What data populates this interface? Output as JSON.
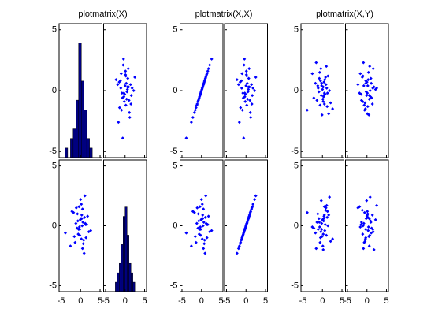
{
  "chart_data": [
    {
      "type": "scatter-matrix",
      "title": "plotmatrix(X)",
      "diagonal": "hist",
      "color": "#0000ff",
      "hist_color": "#000080",
      "xlim": [
        -5.5,
        5.5
      ],
      "ylim": [
        -5.5,
        5.5
      ],
      "xticks": [
        -5,
        0,
        5
      ],
      "yticks": [
        -5,
        0,
        5
      ],
      "hist_ylim": [
        0,
        14
      ],
      "vars": [
        [
          0.3,
          -0.5,
          1.2,
          -1.1,
          0.8,
          0.1,
          -0.2,
          1.6,
          -1.8,
          0.5,
          -0.7,
          2.1,
          0.0,
          -0.3,
          1.0,
          -1.4,
          0.6,
          -3.9,
          0.2,
          -0.9,
          1.4,
          -0.1,
          0.9,
          -2.2,
          0.4,
          -0.6,
          1.8,
          -0.4,
          0.7,
          -1.2,
          2.6,
          -0.8,
          0.2,
          1.1,
          -1.6,
          0.3,
          -0.2,
          0.5,
          -2.6,
          1.3
        ],
        [
          0.9,
          -0.3,
          0.2,
          1.5,
          -1.2,
          0.6,
          -0.8,
          0.1,
          1.1,
          -1.9,
          0.4,
          -0.5,
          2.2,
          -0.1,
          0.7,
          -1.4,
          0.3,
          -0.6,
          1.8,
          -0.2,
          -1.0,
          0.5,
          -2.3,
          1.2,
          0.0,
          -0.7,
          0.8,
          1.6,
          -1.5,
          0.2,
          -0.4,
          1.0,
          -1.1,
          2.5,
          -0.9,
          0.6,
          -0.3,
          1.4,
          -1.7,
          0.1
        ]
      ],
      "hists": [
        {
          "bins": [
            -4,
            -3.3,
            -2.6,
            -1.9,
            -1.2,
            -0.5,
            0.2,
            0.9,
            1.6,
            2.3,
            3.0
          ],
          "counts": [
            1,
            0,
            2,
            3,
            6,
            12,
            8,
            5,
            2,
            1
          ]
        },
        {
          "bins": [
            -2.5,
            -2,
            -1.5,
            -1,
            -0.5,
            0,
            0.5,
            1,
            1.5,
            2,
            2.5
          ],
          "counts": [
            1,
            2,
            3,
            5,
            8,
            9,
            6,
            3,
            2,
            1
          ]
        }
      ]
    },
    {
      "type": "scatter-matrix",
      "title": "plotmatrix(X,X)",
      "diagonal": "scatter",
      "color": "#0000ff",
      "xlim": [
        -5.5,
        5.5
      ],
      "ylim": [
        -5.5,
        5.5
      ],
      "xticks": [
        -5,
        0,
        5
      ],
      "yticks": [
        -5,
        0,
        5
      ],
      "vars": [
        [
          0.3,
          -0.5,
          1.2,
          -1.1,
          0.8,
          0.1,
          -0.2,
          1.6,
          -1.8,
          0.5,
          -0.7,
          2.1,
          0.0,
          -0.3,
          1.0,
          -1.4,
          0.6,
          -3.9,
          0.2,
          -0.9,
          1.4,
          -0.1,
          0.9,
          -2.2,
          0.4,
          -0.6,
          1.8,
          -0.4,
          0.7,
          -1.2,
          2.6,
          -0.8,
          0.2,
          1.1,
          -1.6,
          0.3,
          -0.2,
          0.5,
          -2.6,
          1.3
        ],
        [
          0.9,
          -0.3,
          0.2,
          1.5,
          -1.2,
          0.6,
          -0.8,
          0.1,
          1.1,
          -1.9,
          0.4,
          -0.5,
          2.2,
          -0.1,
          0.7,
          -1.4,
          0.3,
          -0.6,
          1.8,
          -0.2,
          -1.0,
          0.5,
          -2.3,
          1.2,
          0.0,
          -0.7,
          0.8,
          1.6,
          -1.5,
          0.2,
          -0.4,
          1.0,
          -1.1,
          2.5,
          -0.9,
          0.6,
          -0.3,
          1.4,
          -1.7,
          0.1
        ]
      ]
    },
    {
      "type": "scatter-matrix",
      "title": "plotmatrix(X,Y)",
      "diagonal": "scatter",
      "color": "#0000ff",
      "xlim": [
        -5.5,
        5.5
      ],
      "ylim": [
        -5.5,
        5.5
      ],
      "xticks": [
        -5,
        0,
        5
      ],
      "yticks": [
        -5,
        0,
        5
      ],
      "x_vars": [
        [
          0.3,
          -0.5,
          1.2,
          -1.1,
          0.8,
          0.1,
          -0.2,
          1.6,
          -1.8,
          0.5,
          -0.7,
          2.1,
          0.0,
          -0.3,
          1.0,
          -1.4,
          0.6,
          -3.9,
          0.2,
          -0.9,
          1.4,
          -0.1,
          0.9,
          -2.2,
          0.4,
          -0.6,
          1.8,
          -0.4,
          0.7,
          -1.2,
          2.6,
          -0.8,
          0.2,
          1.1,
          -1.6,
          0.3,
          -0.2,
          0.5,
          -2.6,
          1.3
        ],
        [
          0.9,
          -0.3,
          0.2,
          1.5,
          -1.2,
          0.6,
          -0.8,
          0.1,
          1.1,
          -1.9,
          0.4,
          -0.5,
          2.2,
          -0.1,
          0.7,
          -1.4,
          0.3,
          -0.6,
          1.8,
          -0.2,
          -1.0,
          0.5,
          -2.3,
          1.2,
          0.0,
          -0.7,
          0.8,
          1.6,
          -1.5,
          0.2,
          -0.4,
          1.0,
          -1.1,
          2.5,
          -0.9,
          0.6,
          -0.3,
          1.4,
          -1.7,
          0.1
        ]
      ],
      "y_vars": [
        [
          -0.5,
          0.8,
          -1.3,
          0.2,
          1.1,
          -0.7,
          0.4,
          -1.9,
          0.6,
          -0.2,
          1.5,
          -1.0,
          0.1,
          -0.4,
          2.0,
          -0.8,
          0.9,
          -1.6,
          0.3,
          -0.1,
          1.2,
          -2.0,
          0.5,
          -0.6,
          0.7,
          -1.2,
          0.0,
          1.8,
          -0.3,
          0.4,
          -1.5,
          1.0,
          -0.9,
          0.2,
          2.3,
          -0.4,
          0.6,
          -1.1,
          1.4,
          -0.2
        ],
        [
          0.4,
          -1.0,
          0.7,
          -0.3,
          1.3,
          -1.7,
          0.2,
          0.9,
          -0.6,
          1.6,
          -0.1,
          -1.3,
          0.5,
          2.1,
          -0.8,
          0.3,
          -0.4,
          1.1,
          -2.0,
          0.6,
          0.0,
          -0.9,
          1.5,
          -0.2,
          0.8,
          -1.4,
          2.4,
          -0.5,
          0.1,
          1.0,
          -1.1,
          0.3,
          -0.7,
          1.7,
          -1.9,
          0.6,
          -0.3,
          0.9,
          -0.1,
          1.2
        ]
      ]
    }
  ]
}
